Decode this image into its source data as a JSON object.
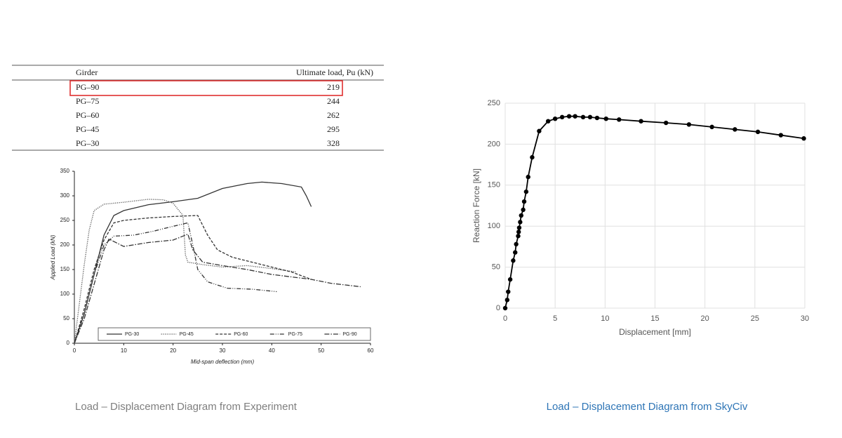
{
  "table": {
    "header": [
      "Girder",
      "Ultimate load, Pu (kN)"
    ],
    "rows": [
      [
        "PG–90",
        219
      ],
      [
        "PG–75",
        244
      ],
      [
        "PG–60",
        262
      ],
      [
        "PG–45",
        295
      ],
      [
        "PG–30",
        328
      ]
    ],
    "highlight_row": 0,
    "highlight_color": "#e03030"
  },
  "chart_data": [
    {
      "type": "line",
      "x_label": "Mid-span deflection (mm)",
      "y_label": "Applied Load (kN)",
      "xlim": [
        0,
        60
      ],
      "xticks": [
        0,
        10,
        20,
        30,
        40,
        50,
        60
      ],
      "ylim": [
        0,
        350
      ],
      "yticks": [
        0,
        50,
        100,
        150,
        200,
        250,
        300,
        350
      ],
      "grid": false,
      "legend": "lower center",
      "series": [
        {
          "name": "PG-30",
          "color": "#333333",
          "dash": "solid",
          "x": [
            0,
            2,
            4,
            6,
            8,
            10,
            15,
            20,
            25,
            30,
            35,
            38,
            42,
            46,
            47,
            48
          ],
          "values": [
            0,
            60,
            140,
            220,
            260,
            270,
            282,
            288,
            295,
            315,
            325,
            328,
            325,
            318,
            300,
            278
          ]
        },
        {
          "name": "PG-45",
          "color": "#555555",
          "dash": "dot",
          "x": [
            0,
            1,
            2,
            3,
            4,
            6,
            10,
            15,
            18,
            20,
            22,
            22.5,
            23,
            26,
            30,
            35,
            40,
            45
          ],
          "values": [
            0,
            80,
            160,
            230,
            270,
            283,
            287,
            293,
            292,
            285,
            260,
            180,
            165,
            160,
            155,
            158,
            152,
            145
          ]
        },
        {
          "name": "PG-60",
          "color": "#333333",
          "dash": "dash",
          "x": [
            0,
            2,
            4,
            6,
            8,
            10,
            15,
            20,
            25,
            27,
            29,
            32,
            38,
            44,
            48
          ],
          "values": [
            0,
            70,
            150,
            210,
            245,
            250,
            255,
            258,
            260,
            220,
            190,
            175,
            160,
            145,
            130
          ]
        },
        {
          "name": "PG-75",
          "color": "#333333",
          "dash": "dash-dot-dot",
          "x": [
            0,
            2,
            4,
            6,
            8,
            12,
            16,
            20,
            23,
            24,
            25,
            27,
            31,
            36,
            41
          ],
          "values": [
            0,
            60,
            140,
            200,
            218,
            220,
            228,
            238,
            245,
            200,
            150,
            125,
            112,
            110,
            105
          ]
        },
        {
          "name": "PG-90",
          "color": "#333333",
          "dash": "dash-dot",
          "x": [
            0,
            2,
            4,
            6,
            7,
            10,
            15,
            20,
            23,
            24,
            26,
            30,
            35,
            40,
            48,
            52,
            58
          ],
          "values": [
            0,
            50,
            120,
            190,
            212,
            197,
            205,
            210,
            222,
            190,
            165,
            158,
            150,
            140,
            130,
            122,
            115
          ]
        }
      ]
    },
    {
      "type": "line",
      "x_label": "Displacement [mm]",
      "y_label": "Reaction Force [kN]",
      "xlim": [
        0,
        30
      ],
      "xticks": [
        0,
        5,
        10,
        15,
        20,
        25,
        30
      ],
      "ylim": [
        0,
        250
      ],
      "yticks": [
        0,
        50,
        100,
        150,
        200,
        250
      ],
      "grid": true,
      "markers": true,
      "color": "#000000",
      "x": [
        0,
        0.2,
        0.3,
        0.5,
        0.8,
        1.0,
        1.1,
        1.3,
        1.35,
        1.4,
        1.5,
        1.6,
        1.8,
        1.9,
        2.1,
        2.3,
        2.7,
        3.4,
        4.3,
        5.0,
        5.7,
        6.4,
        7.0,
        7.8,
        8.5,
        9.2,
        10.1,
        11.4,
        13.6,
        16.1,
        18.4,
        20.7,
        23.0,
        25.3,
        27.6,
        29.9
      ],
      "values": [
        0,
        10,
        20,
        35,
        58,
        68,
        78,
        88,
        93,
        98,
        105,
        113,
        120,
        130,
        142,
        160,
        184,
        216,
        228,
        231,
        233,
        234,
        234,
        233,
        233,
        232,
        231,
        230,
        228,
        226,
        224,
        221,
        218,
        215,
        211,
        207
      ]
    }
  ],
  "captions": [
    {
      "text": "Load – Displacement Diagram from Experiment",
      "color": "#7f7f7f"
    },
    {
      "text": "Load – Displacement Diagram from SkyCiv",
      "color": "#2e75b6"
    }
  ]
}
